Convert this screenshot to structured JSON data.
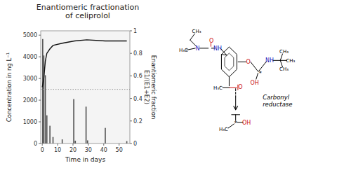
{
  "chart_data": {
    "type": "bar",
    "title": "Enantiomeric fractionation\nof celiprolol",
    "x_label": "Time in days",
    "y_label": "Concentration in ng L⁻¹",
    "y2_label": "Enantiomeric fraction\nE1/(E1+E2)",
    "series": [
      {
        "type": "bar",
        "color": "#555555",
        "x": [
          0.3,
          1.0,
          2.0,
          3.0,
          5.0,
          7.0,
          13.0,
          20.5,
          21.5,
          28.5,
          29.5,
          41.0,
          55.0
        ],
        "values": [
          4820,
          4060,
          3150,
          1300,
          820,
          300,
          190,
          2050,
          130,
          1700,
          145,
          720,
          110
        ]
      },
      {
        "type": "line",
        "color": "#111111",
        "axis": "y2",
        "x": [
          0,
          1,
          2,
          3,
          5,
          7,
          13,
          21,
          29,
          41,
          55
        ],
        "values": [
          0.5,
          0.58,
          0.73,
          0.8,
          0.84,
          0.87,
          0.89,
          0.91,
          0.92,
          0.91,
          0.91
        ]
      }
    ],
    "reference_lines": [
      {
        "value": 2500,
        "color": "#999999",
        "line_style": "dotted"
      }
    ],
    "xlim": [
      -1,
      57
    ],
    "xticks": [
      0,
      10,
      20,
      30,
      40,
      50
    ],
    "ylim": [
      0,
      5200
    ],
    "yticks": [
      0,
      1000,
      2000,
      3000,
      4000,
      5000
    ],
    "y2lim": [
      0,
      1.0
    ],
    "y2ticks": [
      0,
      0.2,
      0.4,
      0.6,
      0.8,
      1.0
    ],
    "annotations": [
      "N",
      "CH₃",
      "H₃C",
      "O",
      "NH",
      "O",
      "*",
      "OH",
      "NH",
      "CH₃",
      "CH₃",
      "CH₃",
      "O",
      "H₃C",
      "Carbonyl\nreductase",
      "*",
      "H₃C",
      "OH"
    ]
  }
}
